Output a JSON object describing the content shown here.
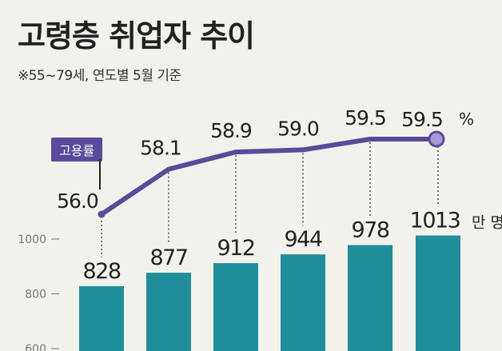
{
  "title": "고령층 취업자 추이",
  "subtitle": "※55~79세, 연도별 5월 기준",
  "colors": {
    "bar": "#1f8e9a",
    "line": "#5b4a9b",
    "marker_fill": "#a99ad6",
    "background": "#f3f1ec",
    "text": "#222222"
  },
  "chart_data": {
    "type": "bar",
    "categories": [
      "",
      "",
      "",
      "",
      "",
      ""
    ],
    "series": [
      {
        "name": "",
        "kind": "bar",
        "values": [
          828,
          877,
          912,
          944,
          978,
          1013
        ],
        "labels": [
          "828",
          "877",
          "912",
          "944",
          "978",
          "1013"
        ],
        "unit": "만 명"
      },
      {
        "name": "고용률",
        "kind": "line",
        "values": [
          56.0,
          58.1,
          58.9,
          59.0,
          59.5,
          59.5
        ],
        "labels": [
          "56.0",
          "58.1",
          "58.9",
          "59.0",
          "59.5",
          "59.5"
        ],
        "unit": "%"
      }
    ],
    "y_axis": {
      "ticks": [
        1000,
        800,
        600
      ],
      "tick_labels": [
        "1000",
        "800",
        "600"
      ],
      "visible_range": [
        600,
        1000
      ]
    },
    "line_axis": {
      "range": [
        56.0,
        59.5
      ]
    },
    "legend": {
      "label": "고용률",
      "placement": "left"
    },
    "grid": false
  }
}
